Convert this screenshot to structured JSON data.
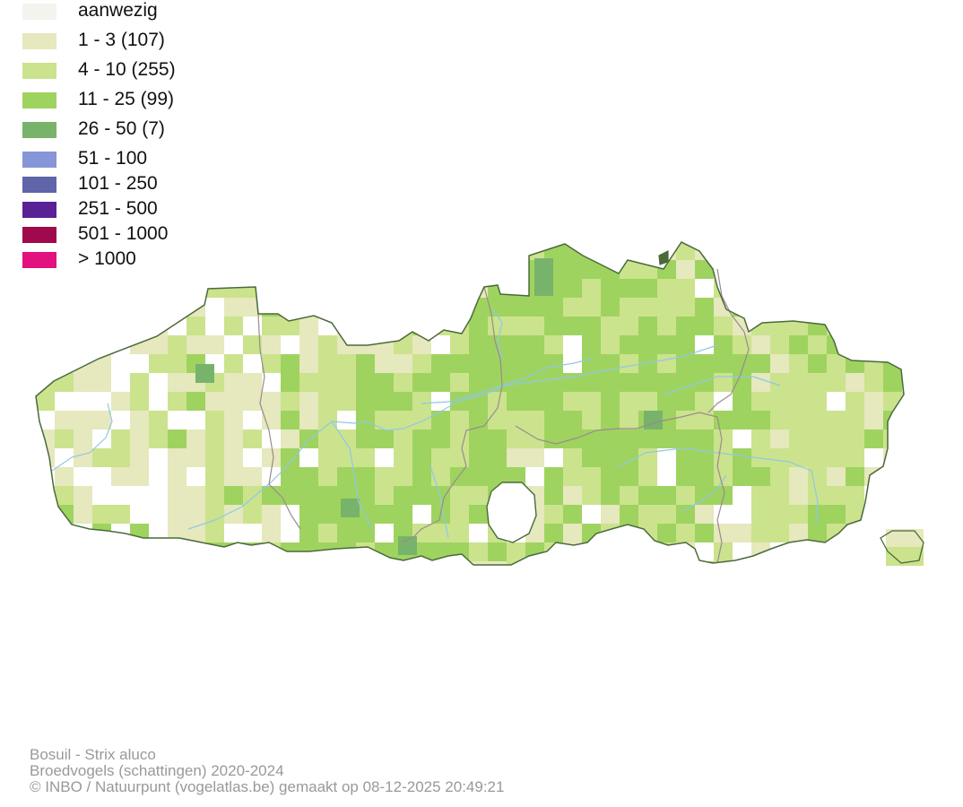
{
  "legend": {
    "items": [
      {
        "label": "aanwezig",
        "color": "#f3f4ee"
      },
      {
        "label": "1 - 3 (107)",
        "color": "#e6e8bd"
      },
      {
        "label": "4 - 10 (255)",
        "color": "#cbe38d"
      },
      {
        "label": "11 - 25 (99)",
        "color": "#9fd35f"
      },
      {
        "label": "26 - 50 (7)",
        "color": "#78b36b"
      },
      {
        "label": "51 - 100",
        "color": "#8796d6"
      },
      {
        "label": "101 - 250",
        "color": "#6064a8"
      },
      {
        "label": "251 - 500",
        "color": "#5a2196"
      },
      {
        "label": "501 - 1000",
        "color": "#a0094c"
      },
      {
        "label": "> 1000",
        "color": "#e2117f"
      }
    ]
  },
  "map": {
    "border_color": "#4a6a3a",
    "province_color": "#9a8a90",
    "river_color": "#8fc8e6"
  },
  "caption": {
    "line1": "Bosuil - Strix aluco",
    "line2": "Broedvogels (schattingen) 2020-2024",
    "line3": "© INBO / Natuurpunt (vogelatlas.be) gemaakt op 08-12-2025 20:49:21"
  }
}
